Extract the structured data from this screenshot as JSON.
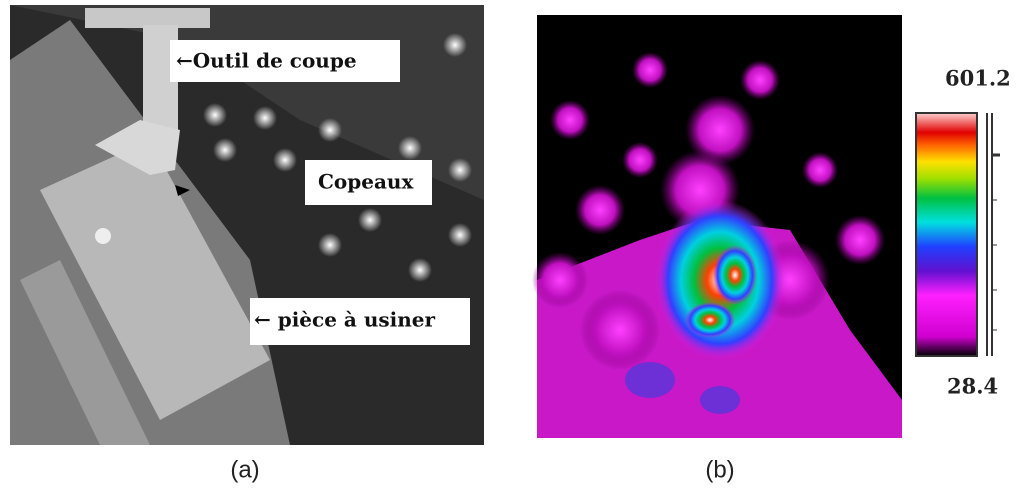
{
  "panel_a": {
    "labels": [
      "←Outil de coupe",
      "Copeaux",
      "← pièce à usiner"
    ],
    "caption": "(a)"
  },
  "panel_b": {
    "colorbar": {
      "max": 601.2,
      "min": 28.4
    },
    "caption": "(b)"
  }
}
